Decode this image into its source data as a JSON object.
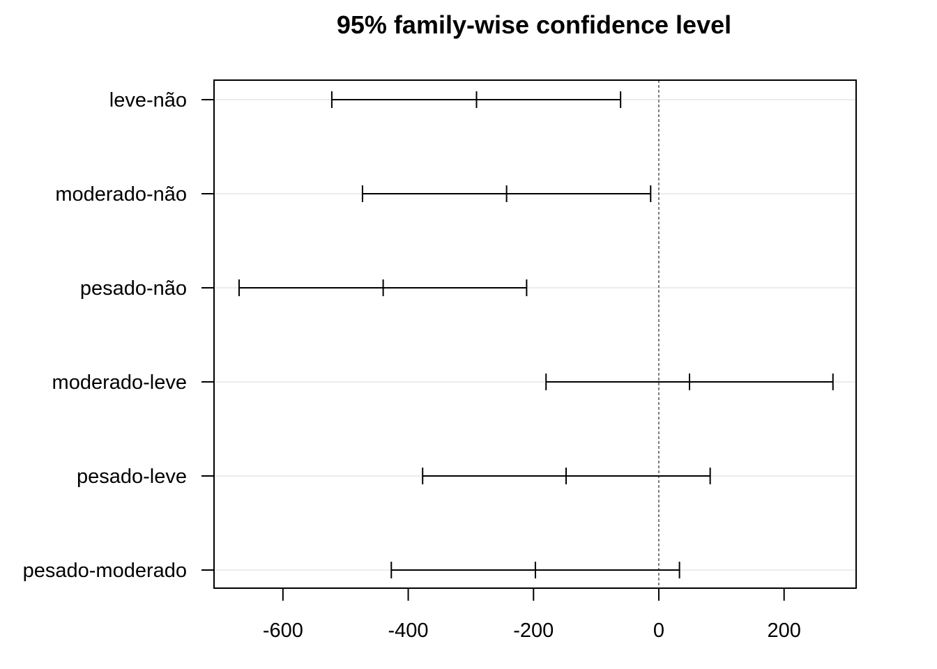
{
  "chart_data": {
    "type": "interval",
    "title": "95% family-wise confidence level",
    "xlabel": "",
    "ylabel": "",
    "xlim": [
      -710,
      315
    ],
    "xticks": [
      -600,
      -400,
      -200,
      0,
      200
    ],
    "grid": true,
    "reference_line": {
      "x": 0,
      "style": "dashed"
    },
    "intervals": [
      {
        "label": "leve-não",
        "lwr": -522,
        "diff": -291,
        "upr": -61
      },
      {
        "label": "moderado-não",
        "lwr": -473,
        "diff": -243,
        "upr": -13
      },
      {
        "label": "pesado-não",
        "lwr": -670,
        "diff": -440,
        "upr": -211
      },
      {
        "label": "moderado-leve",
        "lwr": -180,
        "diff": 49,
        "upr": 278
      },
      {
        "label": "pesado-leve",
        "lwr": -377,
        "diff": -148,
        "upr": 82
      },
      {
        "label": "pesado-moderado",
        "lwr": -427,
        "diff": -197,
        "upr": 33
      }
    ]
  }
}
